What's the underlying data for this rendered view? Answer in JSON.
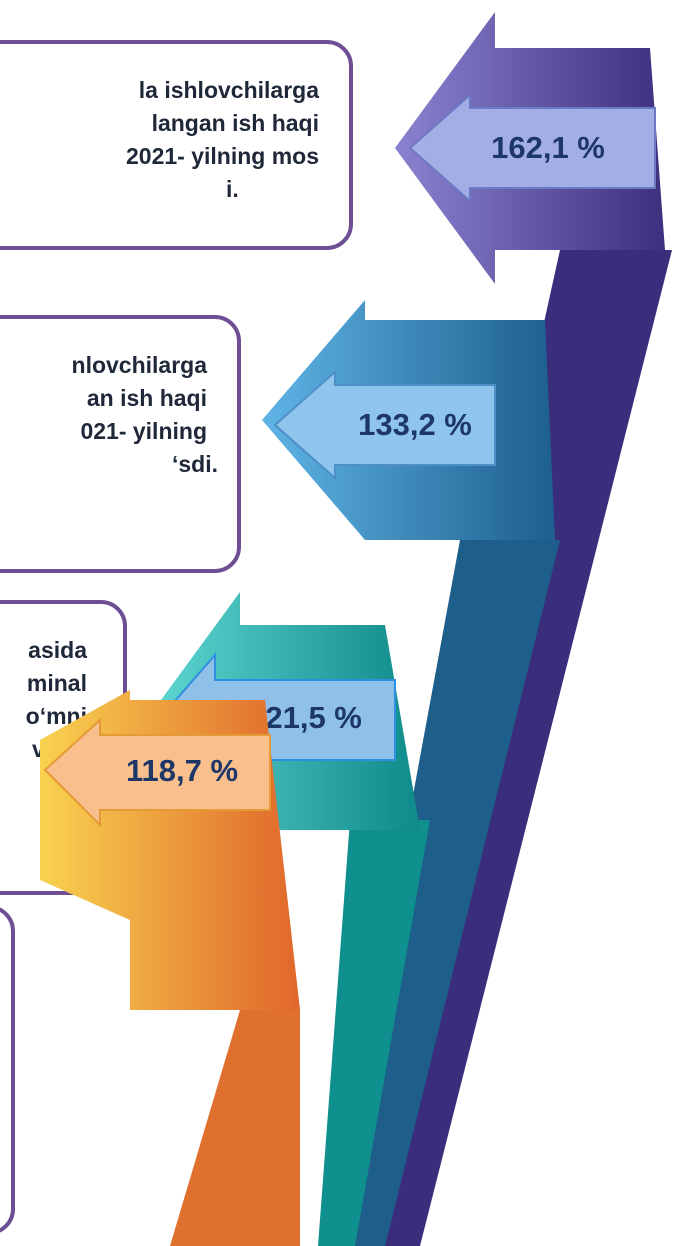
{
  "boxes": [
    {
      "lines": [
        "la ishlovchilarga",
        "langan ish haqi",
        "2021- yilning mos",
        "i."
      ]
    },
    {
      "lines": [
        "nlovchilarga",
        "an ish haqi",
        "021- yilning",
        "‘sdi."
      ]
    },
    {
      "lines": [
        "asida",
        "minal",
        "o‘mni",
        "vriga"
      ]
    },
    {
      "lines": []
    }
  ],
  "arrows": [
    {
      "label": "162,1 %"
    },
    {
      "label": "133,2 %"
    },
    {
      "label": "121,5 %"
    },
    {
      "label": "118,7 %"
    }
  ]
}
